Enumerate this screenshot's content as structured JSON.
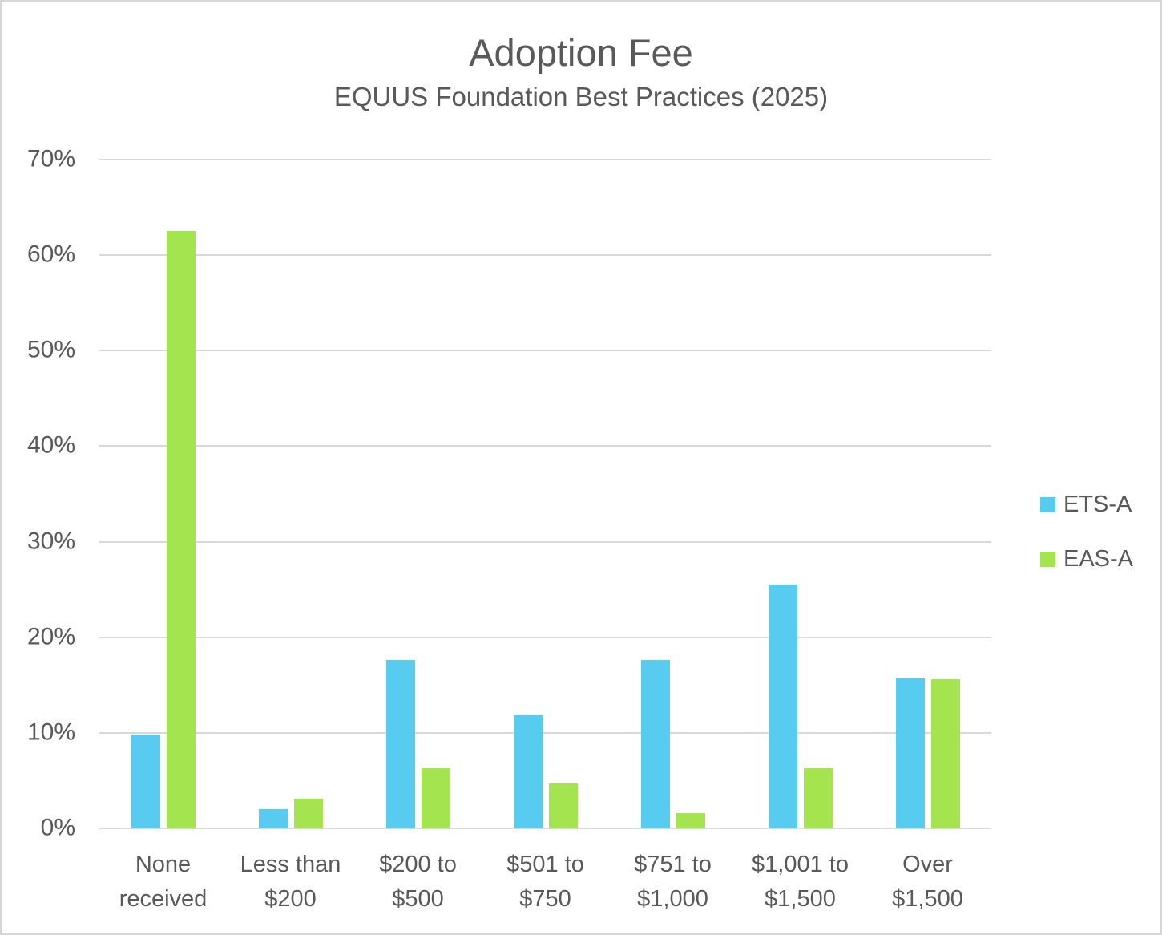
{
  "title": "Adoption Fee",
  "subtitle": "EQUUS Foundation Best Practices (2025)",
  "chart_data": {
    "type": "bar",
    "title": "Adoption Fee",
    "subtitle": "EQUUS Foundation Best Practices (2025)",
    "categories": [
      "None received",
      "Less than $200",
      "$200 to $500",
      "$501 to $750",
      "$751 to $1,000",
      "$1,001 to $1,500",
      "Over $1,500"
    ],
    "categories_display": [
      "None\nreceived",
      "Less than\n$200",
      "$200 to\n$500",
      "$501 to\n$750",
      "$751 to\n$1,000",
      "$1,001 to\n$1,500",
      "Over\n$1,500"
    ],
    "series": [
      {
        "name": "ETS-A",
        "color": "#58CBF0",
        "values": [
          9.8,
          2.0,
          17.6,
          11.8,
          17.6,
          25.5,
          15.7
        ]
      },
      {
        "name": "EAS-A",
        "color": "#A4E44E",
        "values": [
          62.5,
          3.1,
          6.3,
          4.7,
          1.6,
          6.3,
          15.6
        ]
      }
    ],
    "xlabel": "",
    "ylabel": "",
    "ylim": [
      0,
      70
    ],
    "ytick_step": 10,
    "ytick_labels": [
      "0%",
      "10%",
      "20%",
      "30%",
      "40%",
      "50%",
      "60%",
      "70%"
    ],
    "grid": true,
    "legend_position": "right"
  },
  "colors": {
    "text": "#595959",
    "gridline": "#d9d9d9",
    "background": "#ffffff",
    "border": "#d6d6d6",
    "series_ets_a": "#58CBF0",
    "series_eas_a": "#A4E44E"
  }
}
